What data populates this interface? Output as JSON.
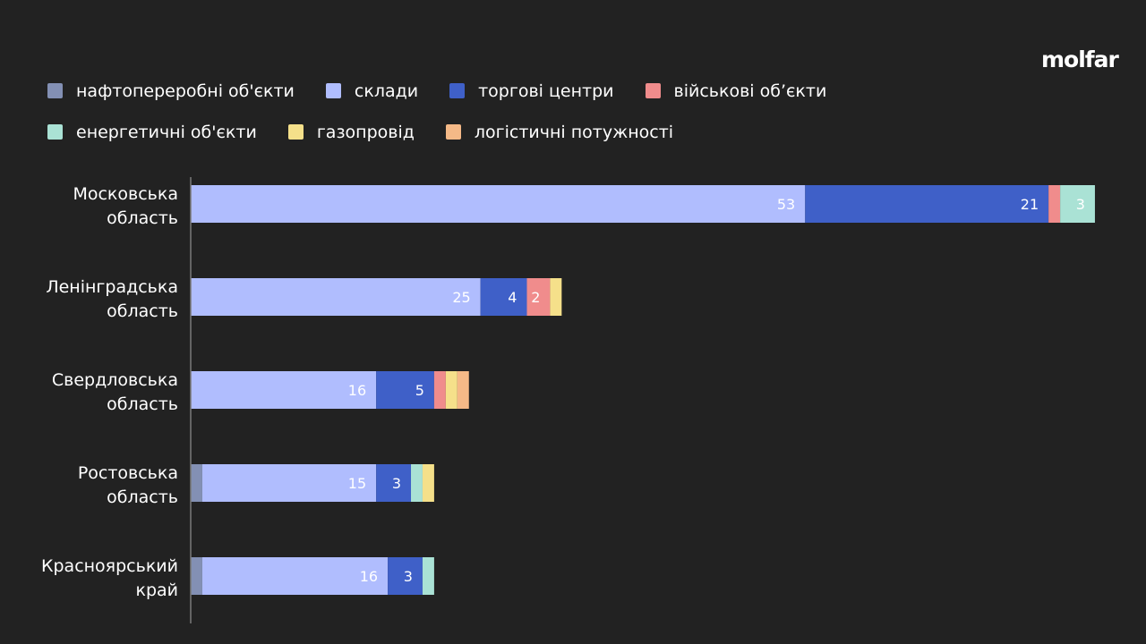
{
  "brand": "molfar",
  "chart_data": {
    "type": "bar",
    "orientation": "horizontal",
    "stacked": true,
    "legend_position": "top-left",
    "grid": false,
    "xlim": [
      0,
      77
    ],
    "categories": [
      [
        "Московська",
        "область"
      ],
      [
        "Ленінградська",
        "область"
      ],
      [
        "Свердловська",
        "область"
      ],
      [
        "Ростовська",
        "область"
      ],
      [
        "Красноярський",
        "край"
      ]
    ],
    "series": [
      {
        "name": "нафтопереробні об'єкти",
        "color": "#8390b4",
        "values": [
          0,
          0,
          0,
          1,
          1
        ],
        "labels": [
          "",
          "",
          "",
          "",
          ""
        ]
      },
      {
        "name": "склади",
        "color": "#b0bdfe",
        "values": [
          53,
          25,
          16,
          15,
          16
        ],
        "labels": [
          "53",
          "25",
          "16",
          "15",
          "16"
        ]
      },
      {
        "name": "торгові центри",
        "color": "#3f60c8",
        "values": [
          21,
          4,
          5,
          3,
          3
        ],
        "labels": [
          "21",
          "4",
          "5",
          "3",
          "3"
        ]
      },
      {
        "name": "військові об’єкти",
        "color": "#f08c8c",
        "values": [
          1,
          2,
          1,
          0,
          0
        ],
        "labels": [
          "",
          "2",
          "",
          "",
          ""
        ]
      },
      {
        "name": "енергетичні об'єкти",
        "color": "#aae2d5",
        "values": [
          3,
          0,
          0,
          1,
          1
        ],
        "labels": [
          "3",
          "",
          "",
          "",
          ""
        ]
      },
      {
        "name": "газопровід",
        "color": "#f5e08a",
        "values": [
          0,
          1,
          1,
          1,
          0
        ],
        "labels": [
          "",
          "",
          "",
          "",
          ""
        ]
      },
      {
        "name": "логістичні потужності",
        "color": "#f5b987",
        "values": [
          0,
          0,
          1,
          0,
          0
        ],
        "labels": [
          "",
          "",
          "",
          "",
          ""
        ]
      }
    ]
  }
}
